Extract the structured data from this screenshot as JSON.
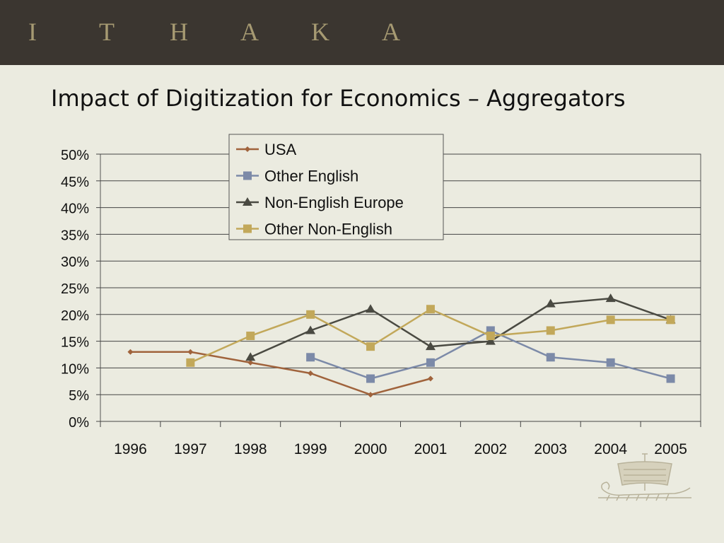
{
  "header": {
    "brand_letters": [
      "I",
      "T",
      "H",
      "A",
      "K",
      "A"
    ]
  },
  "slide": {
    "title": "Impact of Digitization for Economics – Aggregators"
  },
  "colors": {
    "header_bg": "#3b3630",
    "page_bg": "#ebebe0",
    "brand_text": "#a69a72"
  },
  "chart_data": {
    "type": "line",
    "categories": [
      "1996",
      "1997",
      "1998",
      "1999",
      "2000",
      "2001",
      "2002",
      "2003",
      "2004",
      "2005"
    ],
    "ylim": [
      0,
      50
    ],
    "y_ticks": [
      "0%",
      "5%",
      "10%",
      "15%",
      "20%",
      "25%",
      "30%",
      "35%",
      "40%",
      "45%",
      "50%"
    ],
    "grid": true,
    "legend_position": "top-center",
    "series": [
      {
        "name": "USA",
        "color": "#a0633c",
        "marker": "diamond",
        "values": [
          13,
          13,
          11,
          9,
          5,
          8,
          null,
          null,
          null,
          null
        ]
      },
      {
        "name": "Other English",
        "color": "#7c8aa8",
        "marker": "square",
        "values": [
          null,
          null,
          null,
          12,
          8,
          11,
          17,
          12,
          11,
          8
        ]
      },
      {
        "name": "Non-English Europe",
        "color": "#4a4a42",
        "marker": "triangle",
        "values": [
          null,
          null,
          12,
          17,
          21,
          14,
          15,
          22,
          23,
          19
        ]
      },
      {
        "name": "Other Non-English",
        "color": "#c2a85a",
        "marker": "square",
        "values": [
          null,
          11,
          16,
          20,
          14,
          21,
          16,
          17,
          19,
          19
        ]
      }
    ]
  }
}
